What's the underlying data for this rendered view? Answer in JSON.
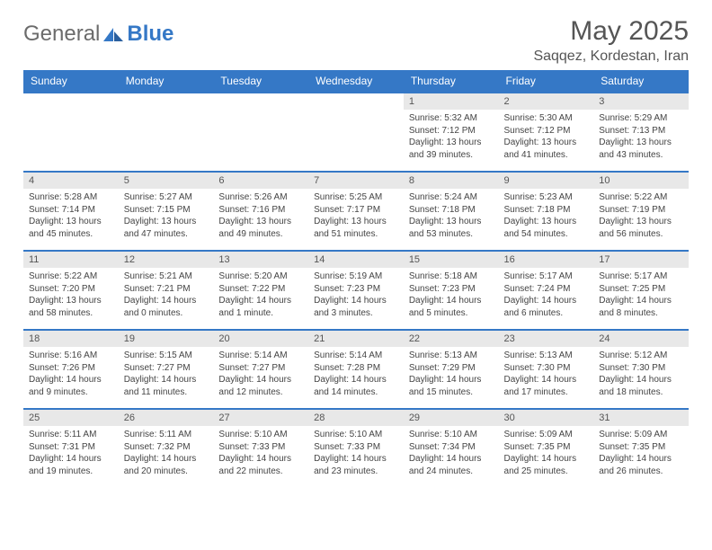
{
  "logo": {
    "text1": "General",
    "text2": "Blue"
  },
  "title": "May 2025",
  "location": "Saqqez, Kordestan, Iran",
  "colors": {
    "accent": "#3578c6",
    "daynum_bg": "#e8e8e8",
    "text": "#444444",
    "header_text": "#555555"
  },
  "weekdays": [
    "Sunday",
    "Monday",
    "Tuesday",
    "Wednesday",
    "Thursday",
    "Friday",
    "Saturday"
  ],
  "weeks": [
    [
      {
        "day": "",
        "sunrise": "",
        "sunset": "",
        "daylight": ""
      },
      {
        "day": "",
        "sunrise": "",
        "sunset": "",
        "daylight": ""
      },
      {
        "day": "",
        "sunrise": "",
        "sunset": "",
        "daylight": ""
      },
      {
        "day": "",
        "sunrise": "",
        "sunset": "",
        "daylight": ""
      },
      {
        "day": "1",
        "sunrise": "Sunrise: 5:32 AM",
        "sunset": "Sunset: 7:12 PM",
        "daylight": "Daylight: 13 hours and 39 minutes."
      },
      {
        "day": "2",
        "sunrise": "Sunrise: 5:30 AM",
        "sunset": "Sunset: 7:12 PM",
        "daylight": "Daylight: 13 hours and 41 minutes."
      },
      {
        "day": "3",
        "sunrise": "Sunrise: 5:29 AM",
        "sunset": "Sunset: 7:13 PM",
        "daylight": "Daylight: 13 hours and 43 minutes."
      }
    ],
    [
      {
        "day": "4",
        "sunrise": "Sunrise: 5:28 AM",
        "sunset": "Sunset: 7:14 PM",
        "daylight": "Daylight: 13 hours and 45 minutes."
      },
      {
        "day": "5",
        "sunrise": "Sunrise: 5:27 AM",
        "sunset": "Sunset: 7:15 PM",
        "daylight": "Daylight: 13 hours and 47 minutes."
      },
      {
        "day": "6",
        "sunrise": "Sunrise: 5:26 AM",
        "sunset": "Sunset: 7:16 PM",
        "daylight": "Daylight: 13 hours and 49 minutes."
      },
      {
        "day": "7",
        "sunrise": "Sunrise: 5:25 AM",
        "sunset": "Sunset: 7:17 PM",
        "daylight": "Daylight: 13 hours and 51 minutes."
      },
      {
        "day": "8",
        "sunrise": "Sunrise: 5:24 AM",
        "sunset": "Sunset: 7:18 PM",
        "daylight": "Daylight: 13 hours and 53 minutes."
      },
      {
        "day": "9",
        "sunrise": "Sunrise: 5:23 AM",
        "sunset": "Sunset: 7:18 PM",
        "daylight": "Daylight: 13 hours and 54 minutes."
      },
      {
        "day": "10",
        "sunrise": "Sunrise: 5:22 AM",
        "sunset": "Sunset: 7:19 PM",
        "daylight": "Daylight: 13 hours and 56 minutes."
      }
    ],
    [
      {
        "day": "11",
        "sunrise": "Sunrise: 5:22 AM",
        "sunset": "Sunset: 7:20 PM",
        "daylight": "Daylight: 13 hours and 58 minutes."
      },
      {
        "day": "12",
        "sunrise": "Sunrise: 5:21 AM",
        "sunset": "Sunset: 7:21 PM",
        "daylight": "Daylight: 14 hours and 0 minutes."
      },
      {
        "day": "13",
        "sunrise": "Sunrise: 5:20 AM",
        "sunset": "Sunset: 7:22 PM",
        "daylight": "Daylight: 14 hours and 1 minute."
      },
      {
        "day": "14",
        "sunrise": "Sunrise: 5:19 AM",
        "sunset": "Sunset: 7:23 PM",
        "daylight": "Daylight: 14 hours and 3 minutes."
      },
      {
        "day": "15",
        "sunrise": "Sunrise: 5:18 AM",
        "sunset": "Sunset: 7:23 PM",
        "daylight": "Daylight: 14 hours and 5 minutes."
      },
      {
        "day": "16",
        "sunrise": "Sunrise: 5:17 AM",
        "sunset": "Sunset: 7:24 PM",
        "daylight": "Daylight: 14 hours and 6 minutes."
      },
      {
        "day": "17",
        "sunrise": "Sunrise: 5:17 AM",
        "sunset": "Sunset: 7:25 PM",
        "daylight": "Daylight: 14 hours and 8 minutes."
      }
    ],
    [
      {
        "day": "18",
        "sunrise": "Sunrise: 5:16 AM",
        "sunset": "Sunset: 7:26 PM",
        "daylight": "Daylight: 14 hours and 9 minutes."
      },
      {
        "day": "19",
        "sunrise": "Sunrise: 5:15 AM",
        "sunset": "Sunset: 7:27 PM",
        "daylight": "Daylight: 14 hours and 11 minutes."
      },
      {
        "day": "20",
        "sunrise": "Sunrise: 5:14 AM",
        "sunset": "Sunset: 7:27 PM",
        "daylight": "Daylight: 14 hours and 12 minutes."
      },
      {
        "day": "21",
        "sunrise": "Sunrise: 5:14 AM",
        "sunset": "Sunset: 7:28 PM",
        "daylight": "Daylight: 14 hours and 14 minutes."
      },
      {
        "day": "22",
        "sunrise": "Sunrise: 5:13 AM",
        "sunset": "Sunset: 7:29 PM",
        "daylight": "Daylight: 14 hours and 15 minutes."
      },
      {
        "day": "23",
        "sunrise": "Sunrise: 5:13 AM",
        "sunset": "Sunset: 7:30 PM",
        "daylight": "Daylight: 14 hours and 17 minutes."
      },
      {
        "day": "24",
        "sunrise": "Sunrise: 5:12 AM",
        "sunset": "Sunset: 7:30 PM",
        "daylight": "Daylight: 14 hours and 18 minutes."
      }
    ],
    [
      {
        "day": "25",
        "sunrise": "Sunrise: 5:11 AM",
        "sunset": "Sunset: 7:31 PM",
        "daylight": "Daylight: 14 hours and 19 minutes."
      },
      {
        "day": "26",
        "sunrise": "Sunrise: 5:11 AM",
        "sunset": "Sunset: 7:32 PM",
        "daylight": "Daylight: 14 hours and 20 minutes."
      },
      {
        "day": "27",
        "sunrise": "Sunrise: 5:10 AM",
        "sunset": "Sunset: 7:33 PM",
        "daylight": "Daylight: 14 hours and 22 minutes."
      },
      {
        "day": "28",
        "sunrise": "Sunrise: 5:10 AM",
        "sunset": "Sunset: 7:33 PM",
        "daylight": "Daylight: 14 hours and 23 minutes."
      },
      {
        "day": "29",
        "sunrise": "Sunrise: 5:10 AM",
        "sunset": "Sunset: 7:34 PM",
        "daylight": "Daylight: 14 hours and 24 minutes."
      },
      {
        "day": "30",
        "sunrise": "Sunrise: 5:09 AM",
        "sunset": "Sunset: 7:35 PM",
        "daylight": "Daylight: 14 hours and 25 minutes."
      },
      {
        "day": "31",
        "sunrise": "Sunrise: 5:09 AM",
        "sunset": "Sunset: 7:35 PM",
        "daylight": "Daylight: 14 hours and 26 minutes."
      }
    ]
  ]
}
